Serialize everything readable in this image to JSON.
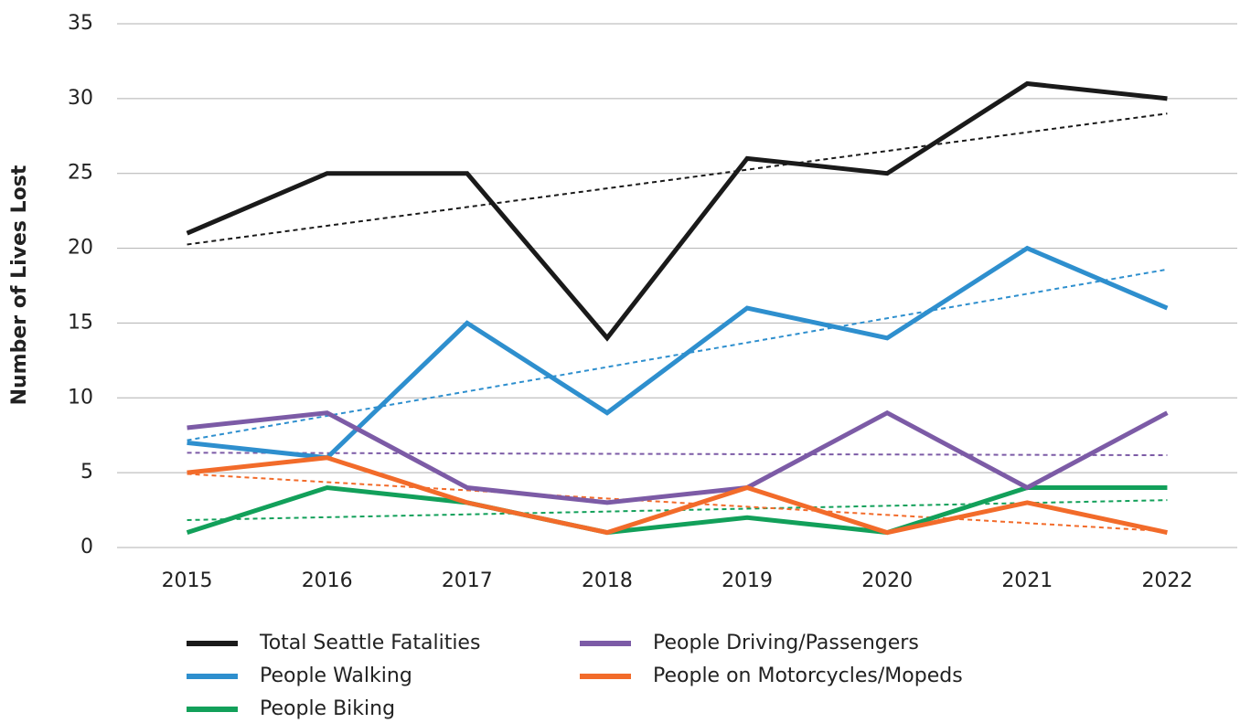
{
  "chart_data": {
    "type": "line",
    "y_label": "Number of Lives Lost",
    "categories": [
      "2015",
      "2016",
      "2017",
      "2018",
      "2019",
      "2020",
      "2021",
      "2022"
    ],
    "series": [
      {
        "name": "Total Seattle Fatalities",
        "color": "#1a1a1a",
        "values": [
          21,
          25,
          25,
          14,
          26,
          25,
          31,
          30
        ]
      },
      {
        "name": "People Walking",
        "color": "#2e8fce",
        "values": [
          7,
          6,
          15,
          9,
          16,
          14,
          20,
          16
        ]
      },
      {
        "name": "People Biking",
        "color": "#12a05a",
        "values": [
          1,
          4,
          3,
          1,
          2,
          1,
          4,
          4
        ]
      },
      {
        "name": "People Driving/Passengers",
        "color": "#7c5ba6",
        "values": [
          8,
          9,
          4,
          3,
          4,
          9,
          4,
          9
        ]
      },
      {
        "name": "People on Motorcycles/Mopeds",
        "color": "#f26b2a",
        "values": [
          5,
          6,
          3,
          1,
          4,
          1,
          3,
          1
        ]
      }
    ],
    "ylim": [
      0,
      35
    ],
    "yticks": [
      0,
      5,
      10,
      15,
      20,
      25,
      30,
      35
    ],
    "grid": true,
    "trendline": true
  }
}
